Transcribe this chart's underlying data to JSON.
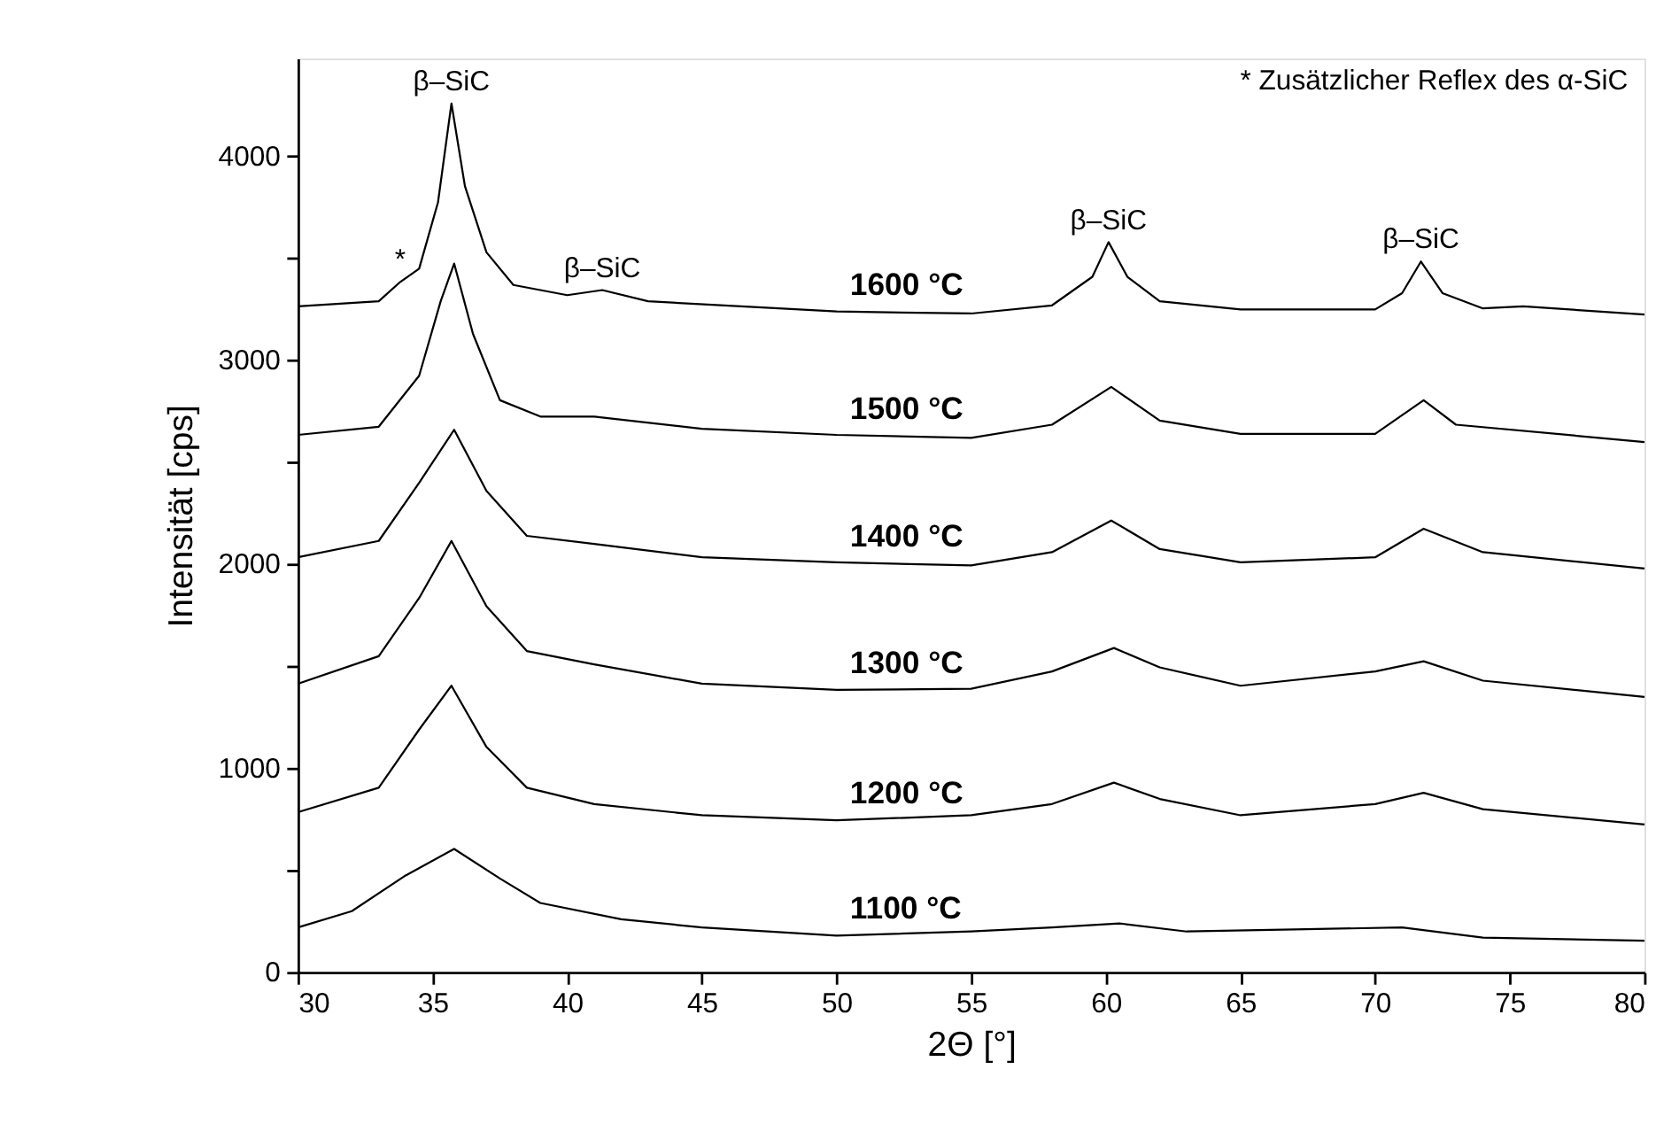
{
  "chart_data": {
    "type": "line",
    "xlabel": "2Θ [°]",
    "ylabel": "Intensität [cps]",
    "xlim": [
      30,
      80
    ],
    "xticks": [
      30,
      35,
      40,
      45,
      50,
      55,
      60,
      65,
      70,
      75,
      80
    ],
    "ylim": [
      0,
      4480
    ],
    "yticks": [
      0,
      {
        "value": 500,
        "label": null
      },
      1000,
      {
        "value": 1500,
        "label": null
      },
      2000,
      {
        "value": 2500,
        "label": null
      },
      3000,
      {
        "value": 3500,
        "label": null
      },
      4000
    ],
    "grid": false,
    "marker": "none",
    "line_style": "solid",
    "series": [
      {
        "name": "1600 °C",
        "color": "#000000",
        "x": [
          30,
          33,
          33.8,
          34.5,
          35.2,
          35.7,
          36.2,
          37,
          38,
          40,
          41.3,
          43,
          50,
          55,
          58,
          59.5,
          60.1,
          60.8,
          62,
          65,
          70,
          71,
          71.7,
          72.5,
          74,
          75.5,
          80
        ],
        "values": [
          3265,
          3290,
          3385,
          3450,
          3775,
          4260,
          3855,
          3530,
          3370,
          3320,
          3345,
          3290,
          3240,
          3230,
          3270,
          3410,
          3580,
          3410,
          3290,
          3250,
          3250,
          3330,
          3485,
          3330,
          3255,
          3265,
          3225
        ]
      },
      {
        "name": "1500 °C",
        "color": "#000000",
        "x": [
          30,
          33,
          34.5,
          35.3,
          35.8,
          36.5,
          37.5,
          39,
          41,
          45,
          50,
          55,
          58,
          60.2,
          62,
          65,
          70,
          71.8,
          73,
          80
        ],
        "values": [
          2635,
          2675,
          2925,
          3290,
          3475,
          3130,
          2805,
          2725,
          2725,
          2665,
          2635,
          2620,
          2685,
          2870,
          2705,
          2640,
          2640,
          2805,
          2685,
          2600
        ]
      },
      {
        "name": "1400 °C",
        "color": "#000000",
        "x": [
          30,
          33,
          34.5,
          35.8,
          37,
          38.5,
          41,
          45,
          50,
          55,
          58,
          60.2,
          62,
          65,
          70,
          71.8,
          74,
          80
        ],
        "values": [
          2035,
          2115,
          2400,
          2660,
          2360,
          2140,
          2100,
          2035,
          2010,
          1995,
          2060,
          2215,
          2075,
          2010,
          2035,
          2175,
          2060,
          1980
        ]
      },
      {
        "name": "1300 °C",
        "color": "#000000",
        "x": [
          30,
          33,
          34.5,
          35.7,
          37,
          38.5,
          41,
          45,
          50,
          55,
          58,
          60.3,
          62,
          65,
          70,
          71.8,
          74,
          80
        ],
        "values": [
          1415,
          1550,
          1835,
          2115,
          1795,
          1575,
          1510,
          1415,
          1385,
          1390,
          1475,
          1590,
          1495,
          1405,
          1475,
          1525,
          1430,
          1350
        ]
      },
      {
        "name": "1200 °C",
        "color": "#000000",
        "x": [
          30,
          33,
          34.5,
          35.7,
          37,
          38.5,
          41,
          45,
          50,
          55,
          58,
          60.3,
          62,
          65,
          70,
          71.8,
          74,
          80
        ],
        "values": [
          785,
          905,
          1190,
          1405,
          1105,
          905,
          825,
          770,
          745,
          770,
          825,
          930,
          850,
          770,
          825,
          880,
          800,
          725
        ]
      },
      {
        "name": "1100 °C",
        "color": "#000000",
        "x": [
          30,
          32,
          34,
          35.8,
          37.5,
          39,
          42,
          45,
          50,
          55,
          58,
          60.5,
          63,
          67,
          71,
          74,
          80
        ],
        "values": [
          220,
          300,
          475,
          605,
          460,
          340,
          260,
          220,
          180,
          200,
          220,
          240,
          200,
          210,
          220,
          170,
          155
        ]
      }
    ],
    "annotations": [
      {
        "text": "β–SiC",
        "x": 35.7,
        "y": 4260
      },
      {
        "text": "β–SiC",
        "x": 41.3,
        "y": 3345
      },
      {
        "text": "β–SiC",
        "x": 60.1,
        "y": 3580
      },
      {
        "text": "β–SiC",
        "x": 71.7,
        "y": 3485
      },
      {
        "text": "*",
        "x": 33.8,
        "y": 3385
      },
      "* Zusätzlicher Reflex des α-SiC"
    ]
  }
}
